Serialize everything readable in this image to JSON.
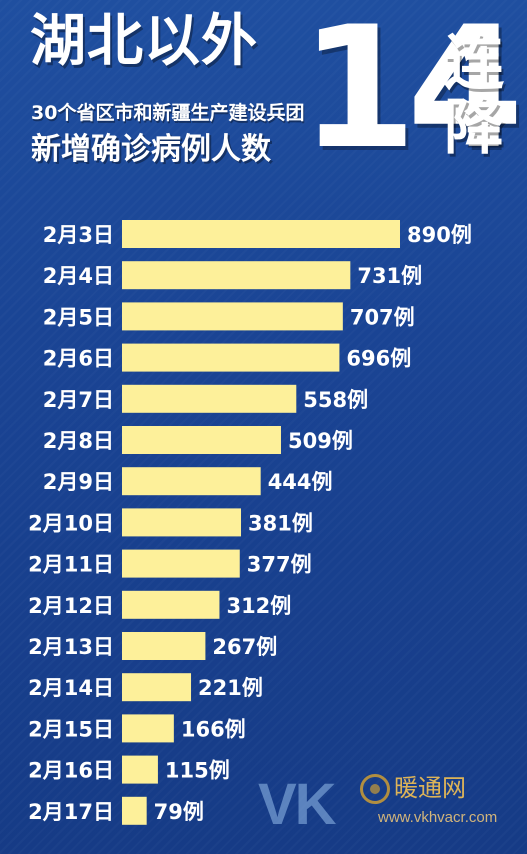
{
  "header": {
    "title": "湖北以外",
    "subtitle_line1": "30个省区市和新疆生产建设兵团",
    "subtitle_line2": "新增确诊病例人数",
    "big_number": "14",
    "big_word_1": "连",
    "big_word_2": "降"
  },
  "colors": {
    "background": "#1a4494",
    "bar": "#fdf09a",
    "text": "#ffffff"
  },
  "chart_data": {
    "type": "bar",
    "orientation": "horizontal",
    "categories": [
      "2月3日",
      "2月4日",
      "2月5日",
      "2月6日",
      "2月7日",
      "2月8日",
      "2月9日",
      "2月10日",
      "2月11日",
      "2月12日",
      "2月13日",
      "2月14日",
      "2月15日",
      "2月16日",
      "2月17日"
    ],
    "values": [
      890,
      731,
      707,
      696,
      558,
      509,
      444,
      381,
      377,
      312,
      267,
      221,
      166,
      115,
      79
    ],
    "value_suffix": "例",
    "grid": false,
    "legend": "none"
  },
  "watermark": {
    "brand": "VK",
    "name": "暖通网",
    "url": "www.vkhvacr.com"
  }
}
